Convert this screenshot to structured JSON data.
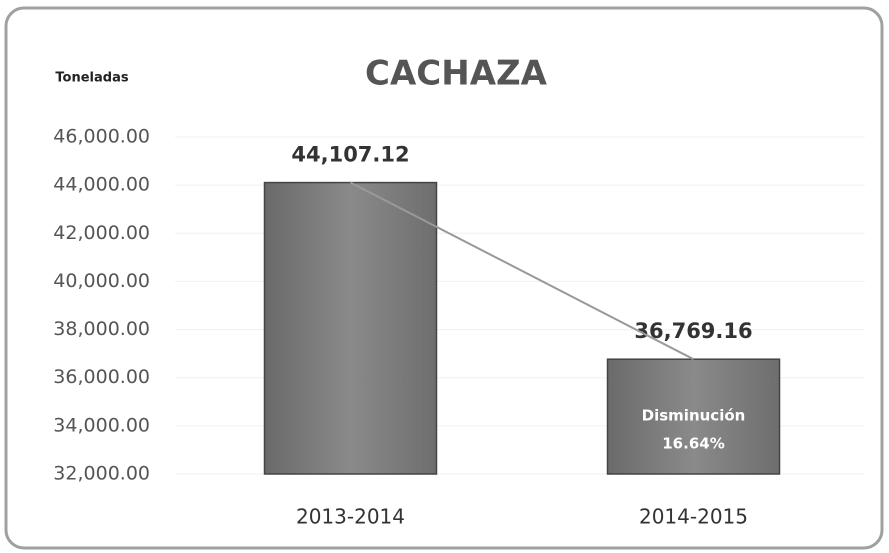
{
  "chart_data": {
    "type": "bar",
    "title": "CACHAZA",
    "y_label": "Toneladas",
    "categories": [
      "2013-2014",
      "2014-2015"
    ],
    "values": [
      44107.12,
      36769.16
    ],
    "value_labels": [
      "44,107.12",
      "36,769.16"
    ],
    "color": "#7a7a7a",
    "trend_line": true,
    "annotation": [
      "Disminución",
      "16.64%"
    ],
    "ylim": [
      32000,
      46000
    ],
    "yticks": [
      {
        "value": 32000,
        "label": "32,000.00"
      },
      {
        "value": 34000,
        "label": "34,000.00"
      },
      {
        "value": 36000,
        "label": "36,000.00"
      },
      {
        "value": 38000,
        "label": "38,000.00"
      },
      {
        "value": 40000,
        "label": "40,000.00"
      },
      {
        "value": 42000,
        "label": "42,000.00"
      },
      {
        "value": 44000,
        "label": "44,000.00"
      },
      {
        "value": 46000,
        "label": "46,000.00"
      }
    ],
    "grid": true
  }
}
